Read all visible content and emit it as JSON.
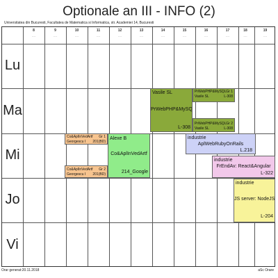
{
  "title": "Optionale an III - INFO (2)",
  "subtitle": "Universitatea din Bucuresti, Facultatea de Matematica si Informatica, str. Academiei 14, Bucuresti",
  "hours": [
    {
      "label": "8",
      "sub": "----"
    },
    {
      "label": "9",
      "sub": "----"
    },
    {
      "label": "10",
      "sub": "----"
    },
    {
      "label": "11",
      "sub": "----"
    },
    {
      "label": "12",
      "sub": "----"
    },
    {
      "label": "13",
      "sub": "----"
    },
    {
      "label": "14",
      "sub": "----"
    },
    {
      "label": "15",
      "sub": "----"
    },
    {
      "label": "16",
      "sub": "----"
    },
    {
      "label": "17",
      "sub": "----"
    },
    {
      "label": "18",
      "sub": "----"
    },
    {
      "label": "19",
      "sub": "----"
    }
  ],
  "days": [
    "Lu",
    "Ma",
    "Mi",
    "Jo",
    "Vi"
  ],
  "events": {
    "ma_main": {
      "teacher": "Vasile SL",
      "course": "PrWebPHP&MySQL",
      "room": "L-308",
      "color": "#8aa93a"
    },
    "ma_g1": {
      "course": "PrWebPHP&MySQL",
      "group": "Gr 1",
      "teacher": "Vasile SL",
      "room": "L-308",
      "color": "#8aa93a"
    },
    "ma_g2": {
      "course": "PrWebPHP&MySQL",
      "group": "Gr 2",
      "teacher": "Vasile SL",
      "room": "L-308",
      "color": "#8aa93a"
    },
    "mi_g1": {
      "course": "Co&AplInVedArtf",
      "group": "Gr 1",
      "teacher": "Georgescu I",
      "room": "201(BD)",
      "color": "#f7c48f"
    },
    "mi_g2": {
      "course": "Co&AplInVedArtf",
      "group": "Gr 2",
      "teacher": "Georgescu I",
      "room": "201(BD)",
      "color": "#f7c48f"
    },
    "mi_main": {
      "teacher": "Alexe B",
      "course": "Co&AplInVedArtf",
      "room": "214_Google",
      "color": "#90ec8a"
    },
    "mi_ind": {
      "teacher": "industrie",
      "course": "AplWebRubyOnRails",
      "room": "L.218",
      "color": "#cdd2f7"
    },
    "mi_fe": {
      "teacher": "industrie",
      "course": "FrEndAv: React&Angular",
      "room": "L-322",
      "color": "#f2c8ea"
    },
    "jo_js": {
      "teacher": "industrie",
      "course": "JS server: NodeJS",
      "room": "L-204",
      "color": "#f8f39a"
    }
  },
  "footer": {
    "left": "Orar generat:20.11.2018",
    "right": "aSc Orare"
  }
}
